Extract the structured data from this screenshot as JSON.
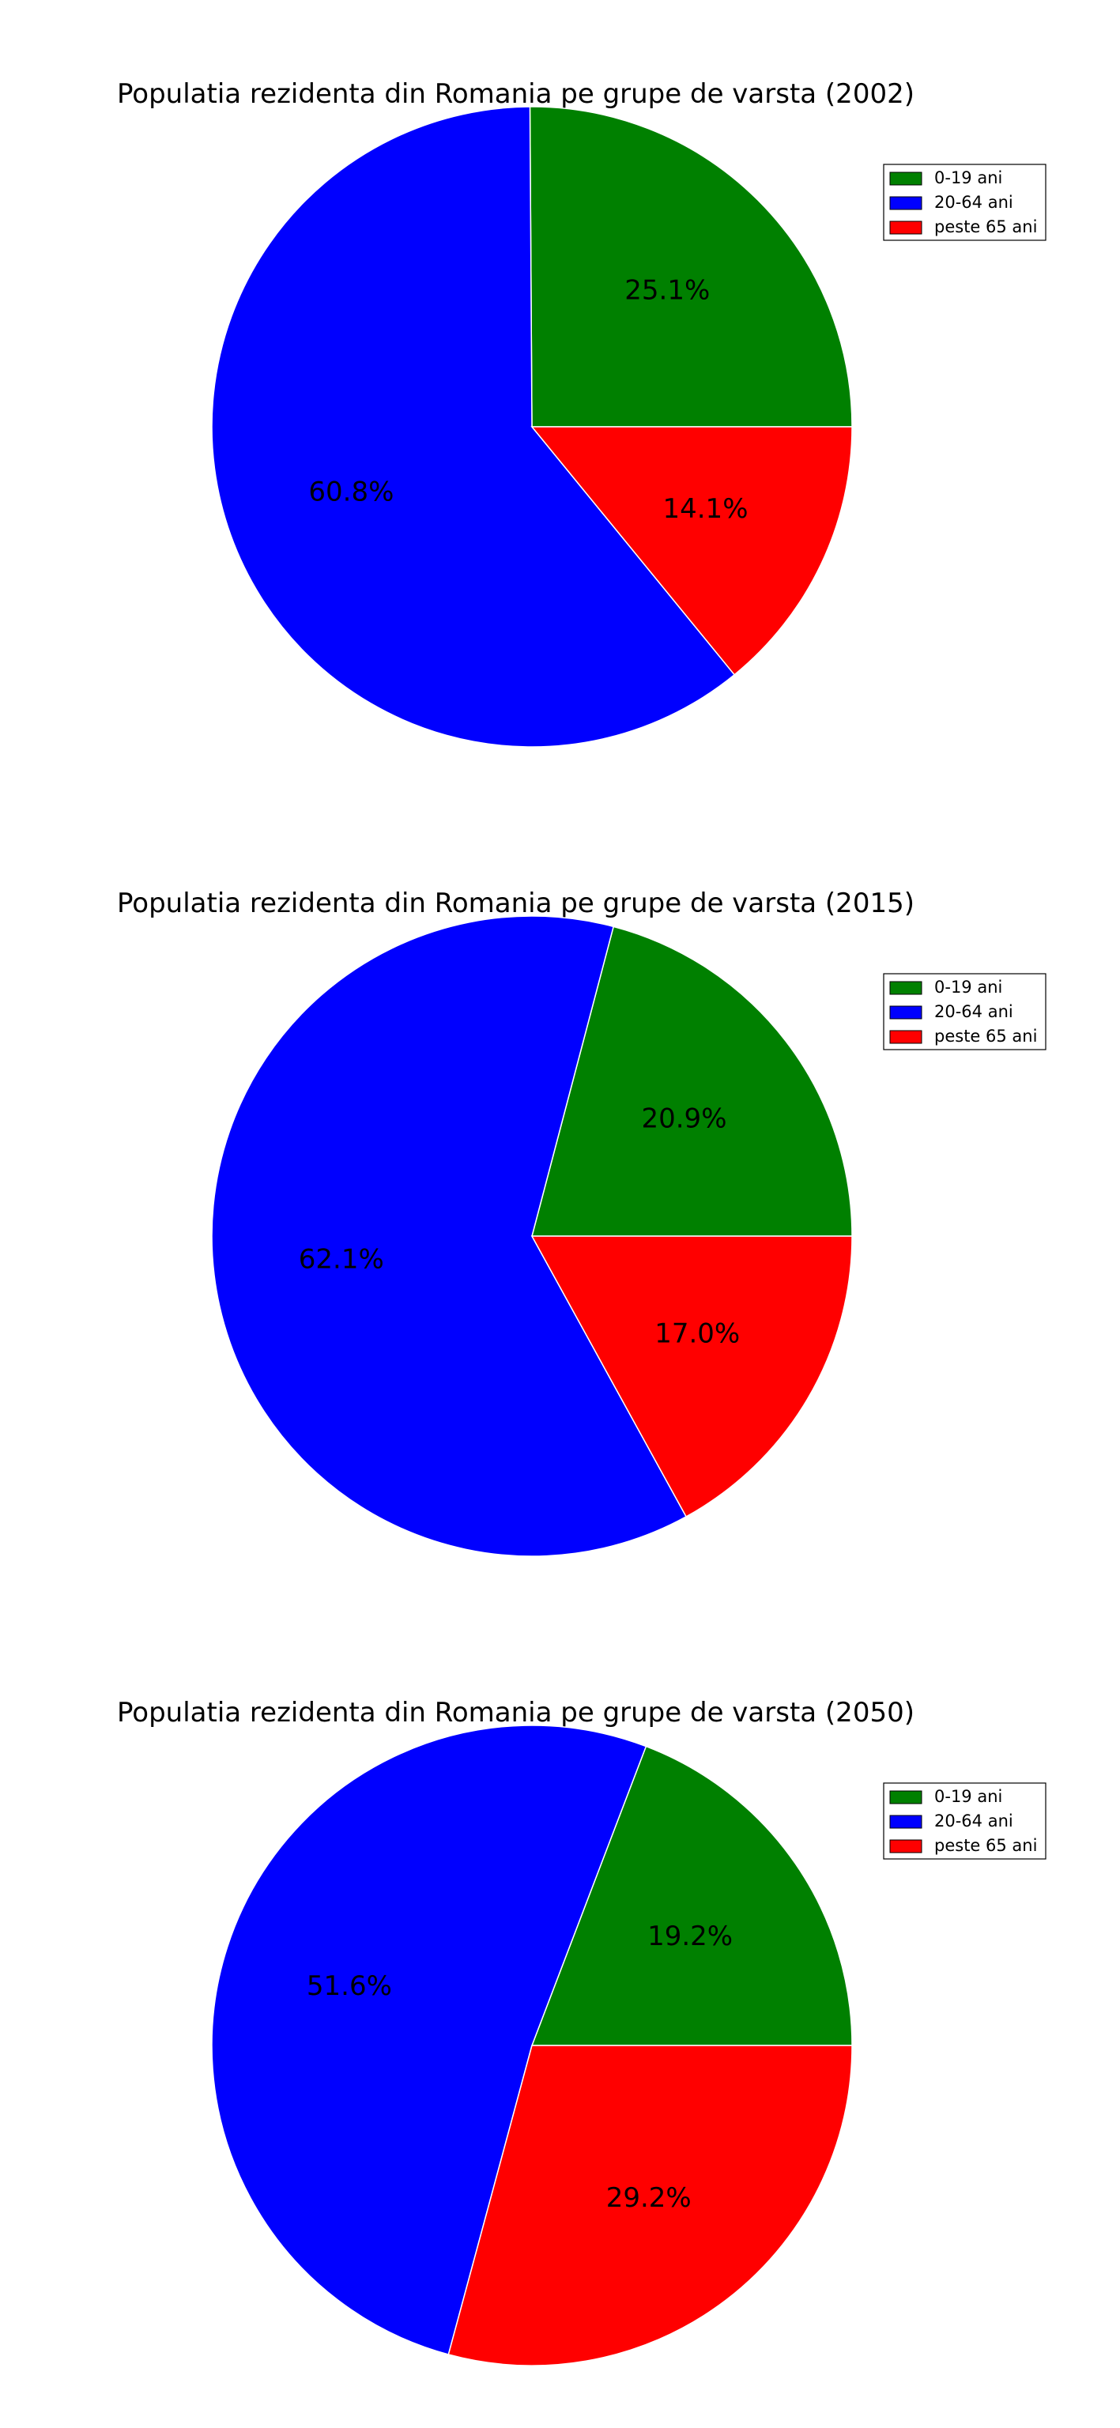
{
  "chart_data": [
    {
      "type": "pie",
      "title": "Populatia rezidenta din Romania pe grupe de varsta (2002)",
      "categories": [
        "0-19 ani",
        "20-64 ani",
        "peste 65 ani"
      ],
      "values": [
        25.1,
        60.8,
        14.1
      ],
      "labels": [
        "25.1%",
        "60.8%",
        "14.1%"
      ],
      "colors": [
        "#008000",
        "#0000ff",
        "#ff0000"
      ],
      "legend": "top-right"
    },
    {
      "type": "pie",
      "title": "Populatia rezidenta din Romania pe grupe de varsta (2015)",
      "categories": [
        "0-19 ani",
        "20-64 ani",
        "peste 65 ani"
      ],
      "values": [
        20.9,
        62.1,
        17.0
      ],
      "labels": [
        "20.9%",
        "62.1%",
        "17.0%"
      ],
      "colors": [
        "#008000",
        "#0000ff",
        "#ff0000"
      ],
      "legend": "top-right"
    },
    {
      "type": "pie",
      "title": "Populatia rezidenta din Romania pe grupe de varsta (2050)",
      "categories": [
        "0-19 ani",
        "20-64 ani",
        "peste 65 ani"
      ],
      "values": [
        19.2,
        51.6,
        29.2
      ],
      "labels": [
        "19.2%",
        "51.6%",
        "29.2%"
      ],
      "colors": [
        "#008000",
        "#0000ff",
        "#ff0000"
      ],
      "legend": "top-right"
    }
  ]
}
